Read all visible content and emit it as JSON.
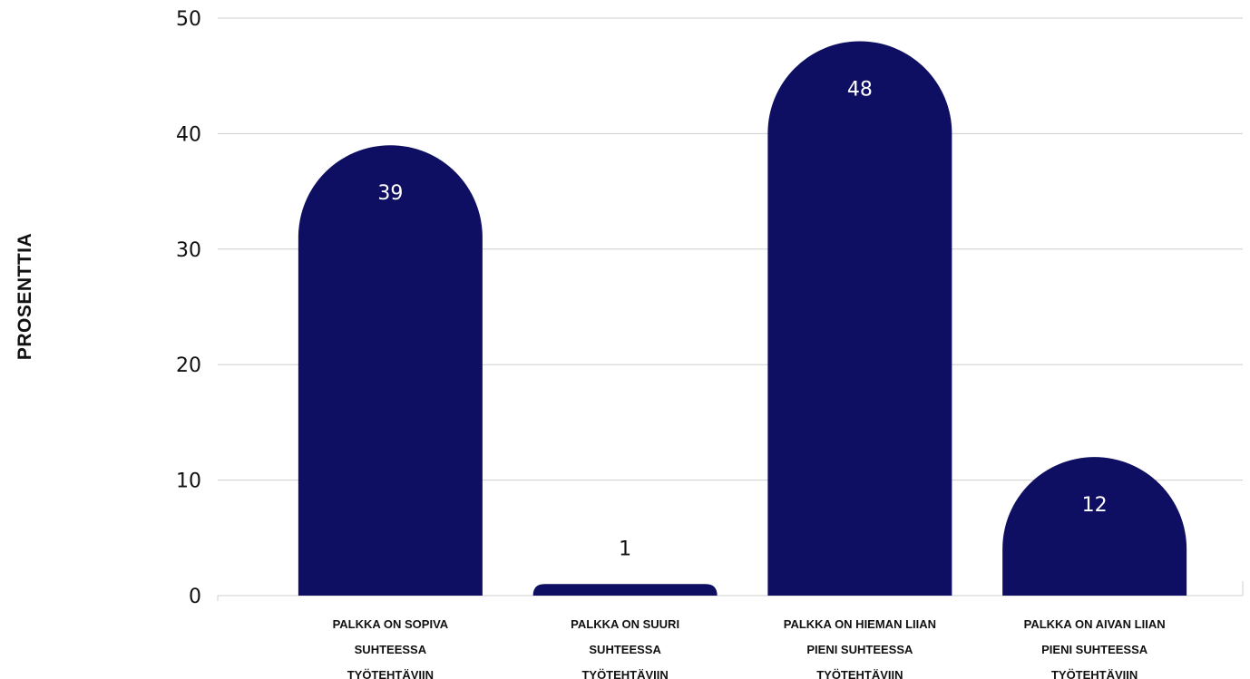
{
  "chart_data": {
    "type": "bar",
    "categories": [
      [
        "PALKKA ON SOPIVA",
        "SUHTEESSA",
        "TYÖTEHTÄVIIN"
      ],
      [
        "PALKKA ON SUURI",
        "SUHTEESSA",
        "TYÖTEHTÄVIIN"
      ],
      [
        "PALKKA ON HIEMAN LIIAN",
        "PIENI SUHTEESSA",
        "TYÖTEHTÄVIIN"
      ],
      [
        "PALKKA ON AIVAN LIIAN",
        "PIENI SUHTEESSA",
        "TYÖTEHTÄVIIN"
      ]
    ],
    "values": [
      39,
      1,
      48,
      12
    ],
    "value_labels": [
      "39",
      "1",
      "48",
      "12"
    ],
    "ylabel": "PROSENTTIA",
    "ylim": [
      0,
      50
    ],
    "yticks": [
      "0",
      "10",
      "20",
      "30",
      "40",
      "50"
    ],
    "ytick_values": [
      0,
      10,
      20,
      30,
      40,
      50
    ],
    "grid": true,
    "colors": {
      "bar": "#0e0f62",
      "label_inside": "#ffffff",
      "label_outside": "#111111"
    }
  }
}
